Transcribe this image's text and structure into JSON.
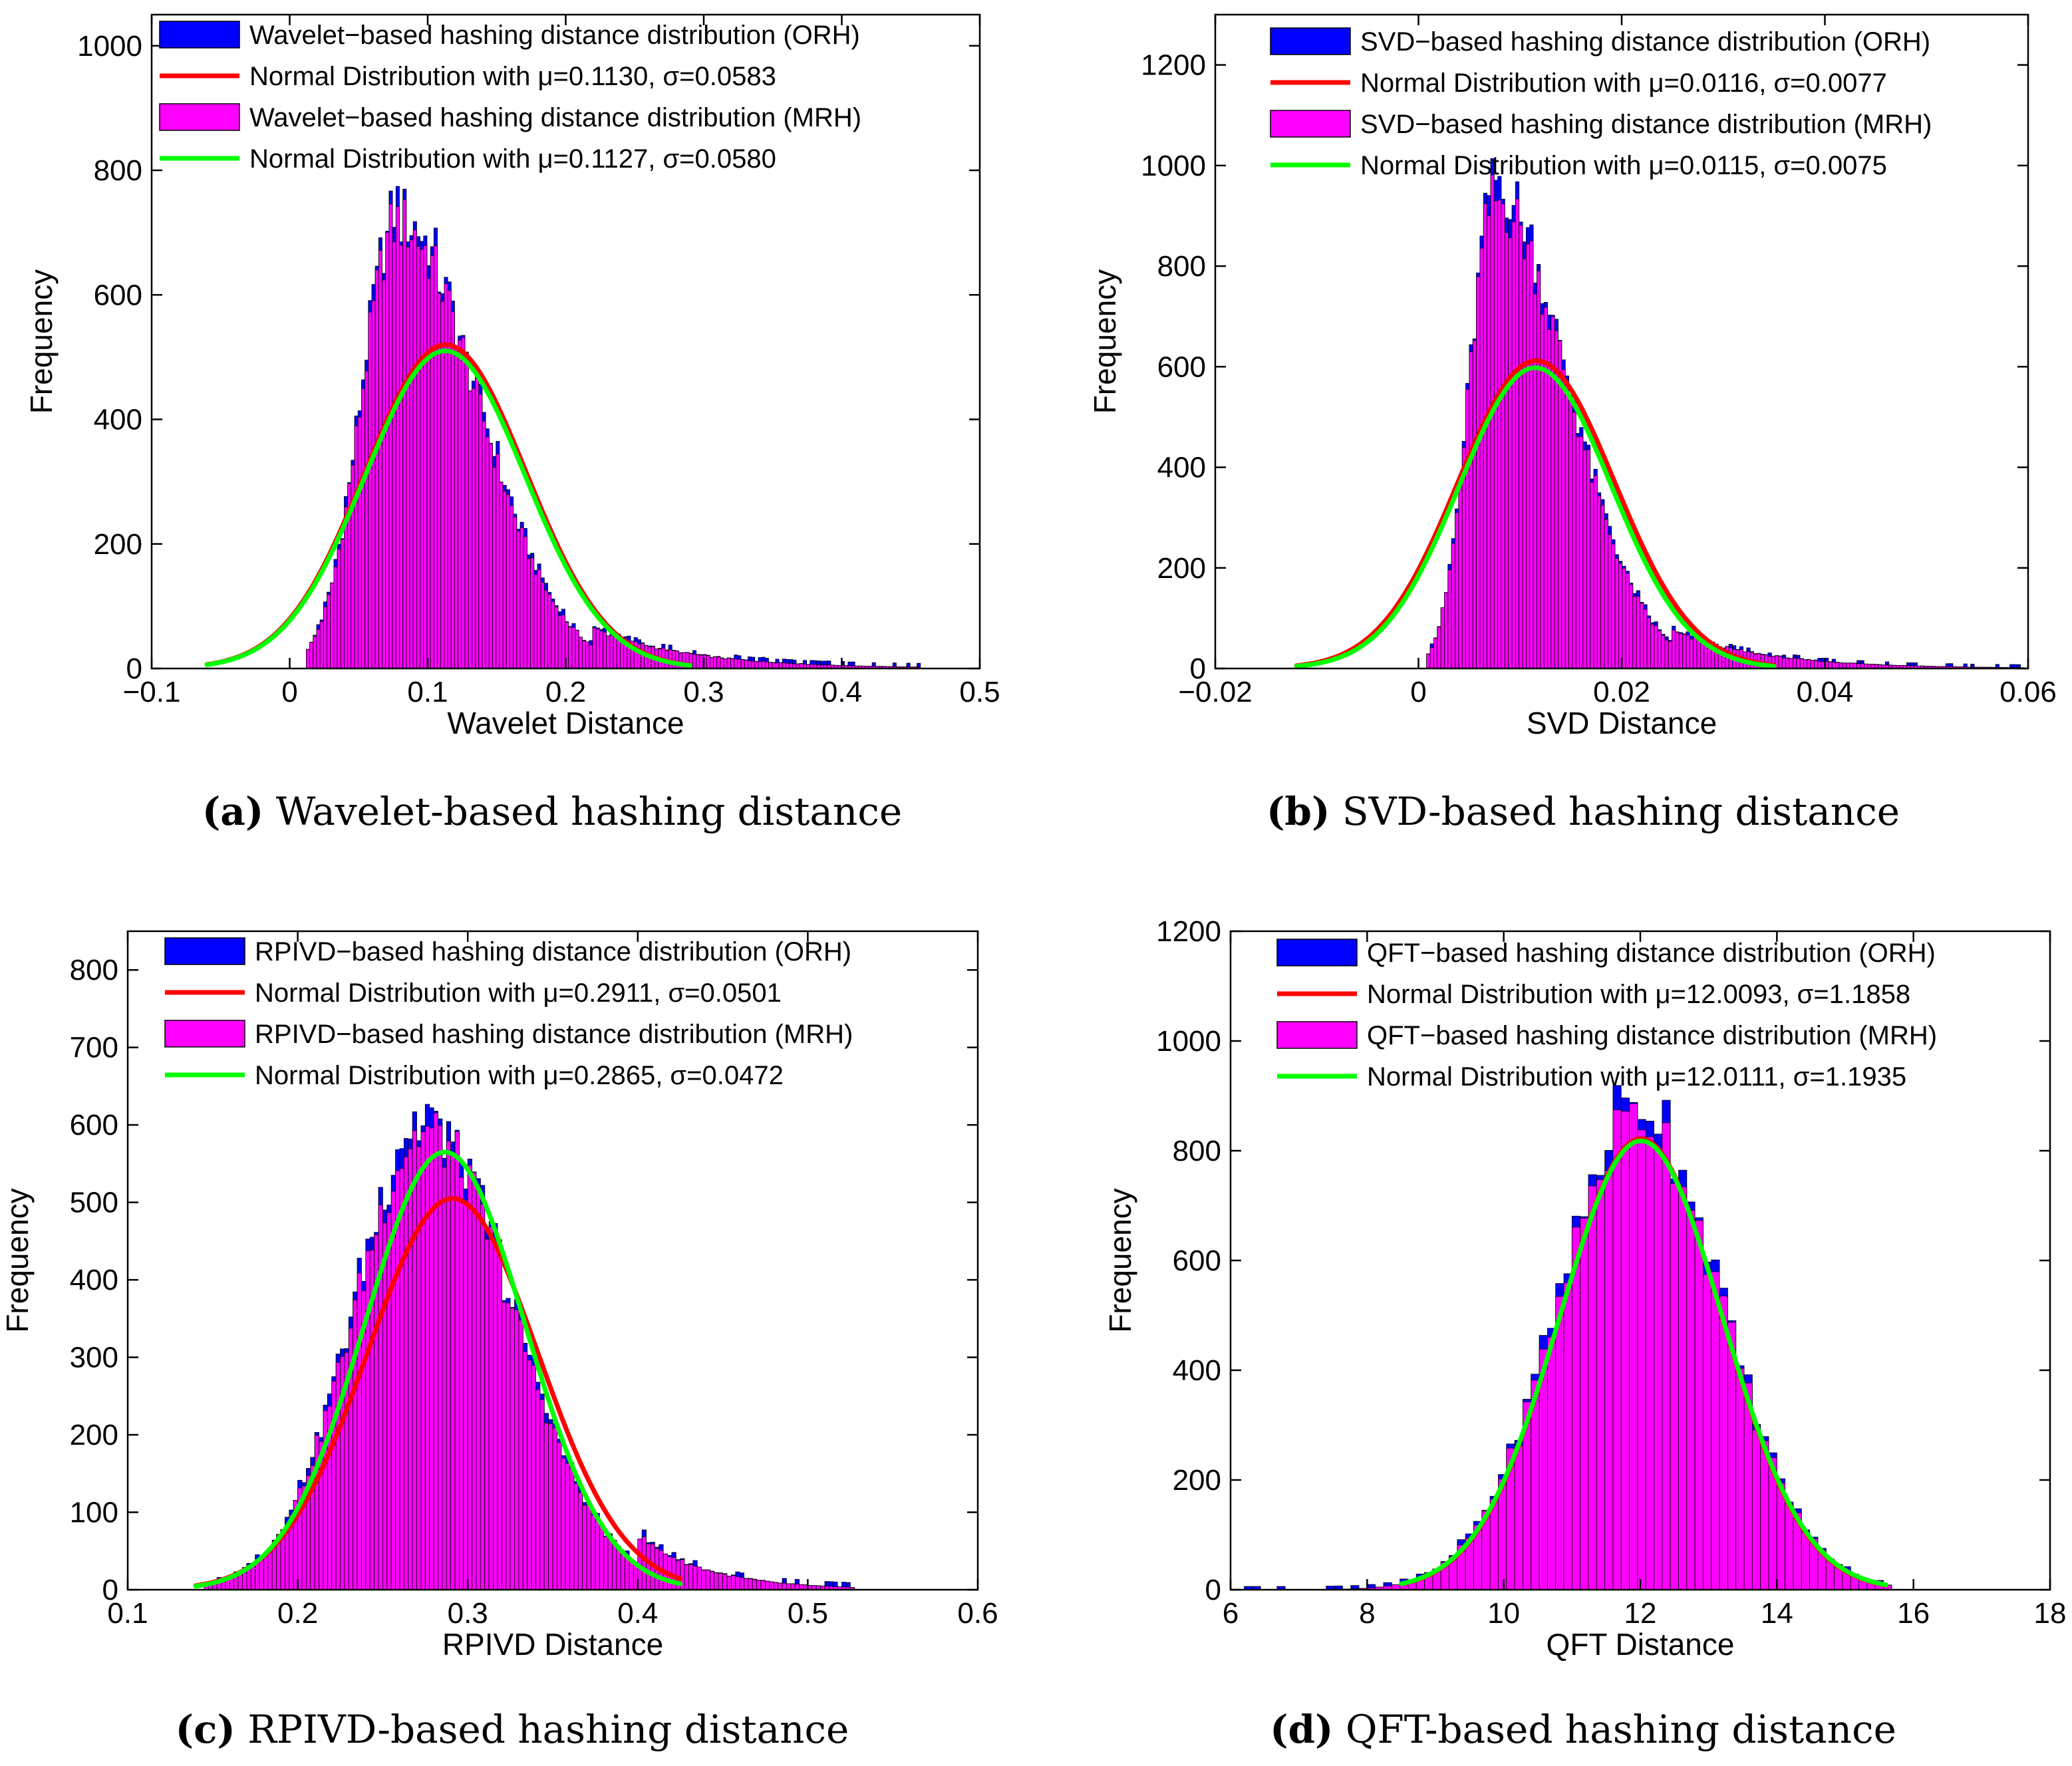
{
  "colors": {
    "orh": "#0000ff",
    "mrh": "#ff00ff",
    "orh_fit": "#ff0000",
    "mrh_fit": "#00ff00",
    "axis": "#000000",
    "background": "#ffffff"
  },
  "chart_data": [
    {
      "id": "a",
      "type": "bar",
      "tag": "(a)",
      "caption": "Wavelet-based hashing distance",
      "xlabel": "Wavelet Distance",
      "ylabel": "Frequency",
      "xlim": [
        -0.1,
        0.5
      ],
      "ylim": [
        0,
        1050
      ],
      "xticks": [
        -0.1,
        0,
        0.1,
        0.2,
        0.3,
        0.4,
        0.5
      ],
      "xtick_labels": [
        "−0.1",
        "0",
        "0.1",
        "0.2",
        "0.3",
        "0.4",
        "0.5"
      ],
      "yticks": [
        0,
        200,
        400,
        600,
        800,
        1000
      ],
      "ytick_labels": [
        "0",
        "200",
        "400",
        "600",
        "800",
        "1000"
      ],
      "legend_position": "top",
      "legend": [
        "Wavelet−based hashing distance distribution (ORH)",
        "Normal Distribution with μ=0.1130, σ=0.0583",
        "Wavelet−based hashing distance distribution (MRH)",
        "Normal Distribution with μ=0.1127, σ=0.0580"
      ],
      "histogram_profile": {
        "bin_width": 0.0025,
        "range": [
          0.012,
          0.455
        ],
        "mode": 0.078,
        "peak_frequency": 715,
        "sigma_left": 0.026,
        "sigma_right": 0.058,
        "tail_start": 0.22,
        "tail_decay": 0.07,
        "tail_level": 0.09
      },
      "fits": [
        {
          "name": "ORH",
          "mu": 0.113,
          "sigma": 0.0583,
          "peak": 520,
          "x_range": [
            -0.06,
            0.29
          ]
        },
        {
          "name": "MRH",
          "mu": 0.1127,
          "sigma": 0.058,
          "peak": 510,
          "x_range": [
            -0.06,
            0.29
          ]
        }
      ]
    },
    {
      "id": "b",
      "type": "bar",
      "tag": "(b)",
      "caption": "SVD-based hashing distance",
      "xlabel": "SVD Distance",
      "ylabel": "Frequency",
      "xlim": [
        -0.02,
        0.06
      ],
      "ylim": [
        0,
        1300
      ],
      "xticks": [
        -0.02,
        0,
        0.02,
        0.04,
        0.06
      ],
      "xtick_labels": [
        "−0.02",
        "0",
        "0.02",
        "0.04",
        "0.06"
      ],
      "yticks": [
        0,
        200,
        400,
        600,
        800,
        1000,
        1200
      ],
      "ytick_labels": [
        "0",
        "200",
        "400",
        "600",
        "800",
        "1000",
        "1200"
      ],
      "legend_position": "top",
      "legend": [
        "SVD−based hashing distance distribution (ORH)",
        "Normal Distribution with μ=0.0116, σ=0.0077",
        "SVD−based hashing distance distribution (MRH)",
        "Normal Distribution with μ=0.0115, σ=0.0075"
      ],
      "histogram_profile": {
        "bin_width": 0.00035,
        "range": [
          0.0008,
          0.0595
        ],
        "mode": 0.0075,
        "peak_frequency": 930,
        "sigma_left": 0.0025,
        "sigma_right": 0.0072,
        "tail_start": 0.025,
        "tail_decay": 0.009,
        "tail_level": 0.08
      },
      "fits": [
        {
          "name": "ORH",
          "mu": 0.0116,
          "sigma": 0.0077,
          "peak": 612,
          "x_range": [
            -0.012,
            0.035
          ]
        },
        {
          "name": "MRH",
          "mu": 0.0115,
          "sigma": 0.0075,
          "peak": 598,
          "x_range": [
            -0.012,
            0.035
          ]
        }
      ]
    },
    {
      "id": "c",
      "type": "bar",
      "tag": "(c)",
      "caption": "RPIVD-based hashing distance",
      "xlabel": "RPIVD Distance",
      "ylabel": "Frequency",
      "xlim": [
        0.1,
        0.6
      ],
      "ylim": [
        0,
        850
      ],
      "xticks": [
        0.1,
        0.2,
        0.3,
        0.4,
        0.5,
        0.6
      ],
      "xtick_labels": [
        "0.1",
        "0.2",
        "0.3",
        "0.4",
        "0.5",
        "0.6"
      ],
      "yticks": [
        0,
        100,
        200,
        300,
        400,
        500,
        600,
        700,
        800
      ],
      "ytick_labels": [
        "0",
        "100",
        "200",
        "300",
        "400",
        "500",
        "600",
        "700",
        "800"
      ],
      "legend_position": "top",
      "legend": [
        "RPIVD−based hashing distance distribution (ORH)",
        "Normal Distribution with μ=0.2911, σ=0.0501",
        "RPIVD−based hashing distance distribution (MRH)",
        "Normal Distribution with μ=0.2865, σ=0.0472"
      ],
      "histogram_profile": {
        "bin_width": 0.0025,
        "range": [
          0.145,
          0.525
        ],
        "mode": 0.275,
        "peak_frequency": 590,
        "sigma_left": 0.042,
        "sigma_right": 0.052,
        "tail_start": 0.4,
        "tail_decay": 0.04,
        "tail_level": 0.12
      },
      "fits": [
        {
          "name": "ORH",
          "mu": 0.2911,
          "sigma": 0.0501,
          "peak": 505,
          "x_range": [
            0.14,
            0.425
          ]
        },
        {
          "name": "MRH",
          "mu": 0.2865,
          "sigma": 0.0472,
          "peak": 565,
          "x_range": [
            0.14,
            0.425
          ]
        }
      ]
    },
    {
      "id": "d",
      "type": "bar",
      "tag": "(d)",
      "caption": "QFT-based hashing distance",
      "xlabel": "QFT Distance",
      "ylabel": "Frequency",
      "xlim": [
        6,
        18
      ],
      "ylim": [
        0,
        1200
      ],
      "xticks": [
        6,
        8,
        10,
        12,
        14,
        16,
        18
      ],
      "xtick_labels": [
        "6",
        "8",
        "10",
        "12",
        "14",
        "16",
        "18"
      ],
      "yticks": [
        0,
        200,
        400,
        600,
        800,
        1000,
        1200
      ],
      "ytick_labels": [
        "0",
        "200",
        "400",
        "600",
        "800",
        "1000",
        "1200"
      ],
      "legend_position": "top",
      "legend": [
        "QFT−based hashing distance distribution (ORH)",
        "Normal Distribution with μ=12.0093, σ=1.1858",
        "QFT−based hashing distance distribution (MRH)",
        "Normal Distribution with μ=12.0111, σ=1.1935"
      ],
      "histogram_profile": {
        "bin_width": 0.12,
        "range": [
          6.2,
          15.6
        ],
        "mode": 12.0,
        "peak_frequency": 865,
        "sigma_left": 1.19,
        "sigma_right": 1.19,
        "tail_start": 99,
        "tail_decay": 1,
        "tail_level": 0
      },
      "fits": [
        {
          "name": "ORH",
          "mu": 12.0093,
          "sigma": 1.1858,
          "peak": 822,
          "x_range": [
            8.5,
            15.6
          ]
        },
        {
          "name": "MRH",
          "mu": 12.0111,
          "sigma": 1.1935,
          "peak": 818,
          "x_range": [
            8.5,
            15.6
          ]
        }
      ]
    }
  ]
}
